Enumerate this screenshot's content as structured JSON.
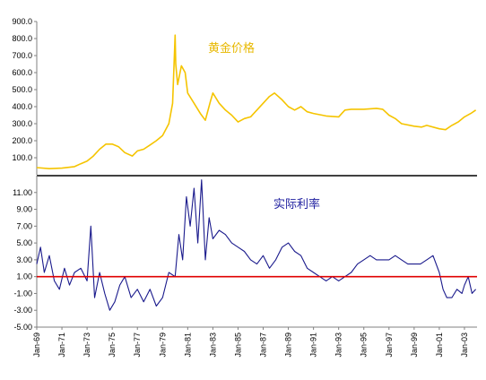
{
  "chart_data": [
    {
      "type": "line",
      "title": "黄金价格",
      "ylim": [
        0,
        900
      ],
      "yticks": [
        "100.0",
        "200.0",
        "300.0",
        "400.0",
        "500.0",
        "600.0",
        "700.0",
        "800.0",
        "900.0"
      ],
      "grid": false,
      "colors": {
        "line": "#f5c400",
        "title": "#e8b800"
      },
      "series": [
        {
          "name": "黄金价格",
          "x": [
            1969.0,
            1970.0,
            1971.0,
            1972.0,
            1972.5,
            1973.0,
            1973.5,
            1974.0,
            1974.5,
            1975.0,
            1975.5,
            1976.0,
            1976.6,
            1977.0,
            1977.5,
            1978.0,
            1978.5,
            1979.0,
            1979.5,
            1979.8,
            1980.0,
            1980.05,
            1980.2,
            1980.5,
            1980.8,
            1981.0,
            1981.5,
            1982.0,
            1982.4,
            1982.8,
            1983.0,
            1983.5,
            1984.0,
            1984.5,
            1985.0,
            1985.5,
            1986.0,
            1986.5,
            1987.0,
            1987.5,
            1987.9,
            1988.5,
            1989.0,
            1989.5,
            1990.0,
            1990.5,
            1991.0,
            1992.0,
            1993.0,
            1993.5,
            1994.0,
            1995.0,
            1996.0,
            1996.5,
            1997.0,
            1997.5,
            1998.0,
            1999.0,
            1999.6,
            2000.0,
            2001.0,
            2001.5,
            2002.0,
            2002.5,
            2003.0,
            2003.5,
            2003.9
          ],
          "values": [
            42,
            36,
            39,
            48,
            65,
            80,
            110,
            150,
            180,
            180,
            165,
            130,
            110,
            140,
            150,
            175,
            200,
            230,
            300,
            420,
            820,
            650,
            530,
            640,
            600,
            480,
            420,
            360,
            320,
            430,
            480,
            420,
            380,
            350,
            310,
            330,
            340,
            380,
            420,
            460,
            480,
            440,
            400,
            380,
            400,
            370,
            360,
            345,
            340,
            380,
            385,
            385,
            390,
            385,
            350,
            330,
            300,
            285,
            280,
            290,
            270,
            265,
            290,
            310,
            340,
            360,
            380
          ]
        }
      ]
    },
    {
      "type": "line",
      "title": "实际利率",
      "ylim": [
        -5,
        13
      ],
      "yticks": [
        "-5.00",
        "-3.00",
        "-1.00",
        "1.00",
        "3.00",
        "5.00",
        "7.00",
        "9.00",
        "11.00"
      ],
      "reference_line": 1.0,
      "grid": false,
      "colors": {
        "line": "#1a1a8c",
        "reference": "#e00000",
        "title": "#2020a0"
      },
      "categories": [
        "Jan-69",
        "Jan-71",
        "Jan-73",
        "Jan-75",
        "Jan-77",
        "Jan-79",
        "Jan-81",
        "Jan-83",
        "Jan-85",
        "Jan-87",
        "Jan-89",
        "Jan-91",
        "Jan-93",
        "Jan-95",
        "Jan-97",
        "Jan-99",
        "Jan-01",
        "Jan-03"
      ],
      "series": [
        {
          "name": "实际利率",
          "x": [
            1969.0,
            1969.3,
            1969.6,
            1970.0,
            1970.4,
            1970.8,
            1971.2,
            1971.6,
            1972.0,
            1972.5,
            1973.0,
            1973.3,
            1973.6,
            1974.0,
            1974.4,
            1974.8,
            1975.2,
            1975.6,
            1976.0,
            1976.5,
            1977.0,
            1977.5,
            1978.0,
            1978.5,
            1979.0,
            1979.5,
            1980.0,
            1980.3,
            1980.6,
            1980.9,
            1981.2,
            1981.5,
            1981.8,
            1982.1,
            1982.4,
            1982.7,
            1983.0,
            1983.5,
            1984.0,
            1984.5,
            1985.0,
            1985.5,
            1986.0,
            1986.5,
            1987.0,
            1987.5,
            1988.0,
            1988.5,
            1989.0,
            1989.5,
            1990.0,
            1990.5,
            1991.0,
            1991.5,
            1992.0,
            1992.5,
            1993.0,
            1993.5,
            1994.0,
            1994.5,
            1995.0,
            1995.5,
            1996.0,
            1996.5,
            1997.0,
            1997.5,
            1998.0,
            1998.5,
            1999.0,
            1999.5,
            2000.0,
            2000.5,
            2001.0,
            2001.3,
            2001.6,
            2002.0,
            2002.4,
            2002.8,
            2003.0,
            2003.3,
            2003.6,
            2003.9
          ],
          "values": [
            2.5,
            4.5,
            1.5,
            3.5,
            0.5,
            -0.5,
            2.0,
            0.0,
            1.5,
            2.0,
            0.5,
            7.0,
            -1.5,
            1.5,
            -1.0,
            -3.0,
            -2.0,
            0.0,
            1.0,
            -1.5,
            -0.5,
            -2.0,
            -0.5,
            -2.5,
            -1.5,
            1.5,
            1.0,
            6.0,
            3.0,
            10.5,
            7.0,
            11.5,
            5.0,
            12.5,
            3.0,
            8.0,
            5.5,
            6.5,
            6.0,
            5.0,
            4.5,
            4.0,
            3.0,
            2.5,
            3.5,
            2.0,
            3.0,
            4.5,
            5.0,
            4.0,
            3.5,
            2.0,
            1.5,
            1.0,
            0.5,
            1.0,
            0.5,
            1.0,
            1.5,
            2.5,
            3.0,
            3.5,
            3.0,
            3.0,
            3.0,
            3.5,
            3.0,
            2.5,
            2.5,
            2.5,
            3.0,
            3.5,
            1.5,
            -0.5,
            -1.5,
            -1.5,
            -0.5,
            -1.0,
            0.0,
            1.0,
            -1.0,
            -0.5
          ]
        }
      ]
    }
  ]
}
